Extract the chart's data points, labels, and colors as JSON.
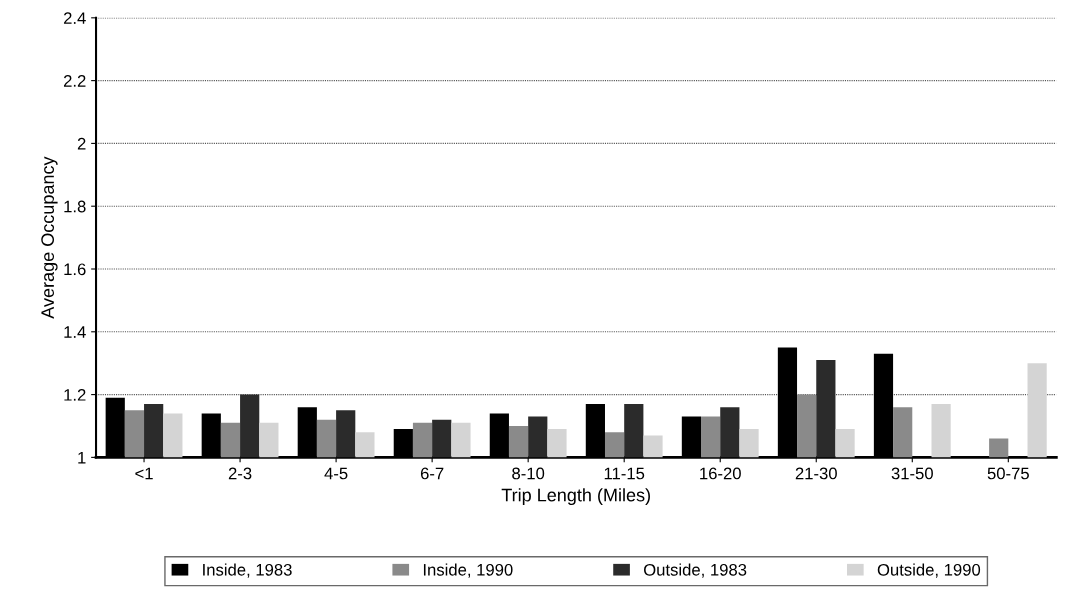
{
  "chart_data": {
    "type": "bar",
    "xlabel": "Trip Length (Miles)",
    "ylabel": "Average Occupancy",
    "categories": [
      "<1",
      "2-3",
      "4-5",
      "6-7",
      "8-10",
      "11-15",
      "16-20",
      "21-30",
      "31-50",
      "50-75"
    ],
    "series": [
      {
        "name": "Inside, 1983",
        "color": "#000000",
        "values": [
          1.19,
          1.14,
          1.16,
          1.09,
          1.14,
          1.17,
          1.13,
          1.35,
          1.33,
          null
        ]
      },
      {
        "name": "Inside, 1990",
        "color": "#8a8a8a",
        "values": [
          1.15,
          1.11,
          1.12,
          1.11,
          1.1,
          1.08,
          1.13,
          1.2,
          1.16,
          1.06
        ]
      },
      {
        "name": "Outside, 1983",
        "color": "#2b2b2b",
        "values": [
          1.17,
          1.2,
          1.15,
          1.12,
          1.13,
          1.17,
          1.16,
          1.31,
          null,
          null
        ]
      },
      {
        "name": "Outside, 1990",
        "color": "#d4d4d4",
        "values": [
          1.14,
          1.11,
          1.08,
          1.11,
          1.09,
          1.07,
          1.09,
          1.09,
          1.17,
          1.3
        ]
      }
    ],
    "ylim": [
      1,
      2.4
    ],
    "yticks": [
      1,
      1.2,
      1.4,
      1.6,
      1.8,
      2,
      2.2,
      2.4
    ],
    "grid": "y",
    "legend": "bottom"
  }
}
